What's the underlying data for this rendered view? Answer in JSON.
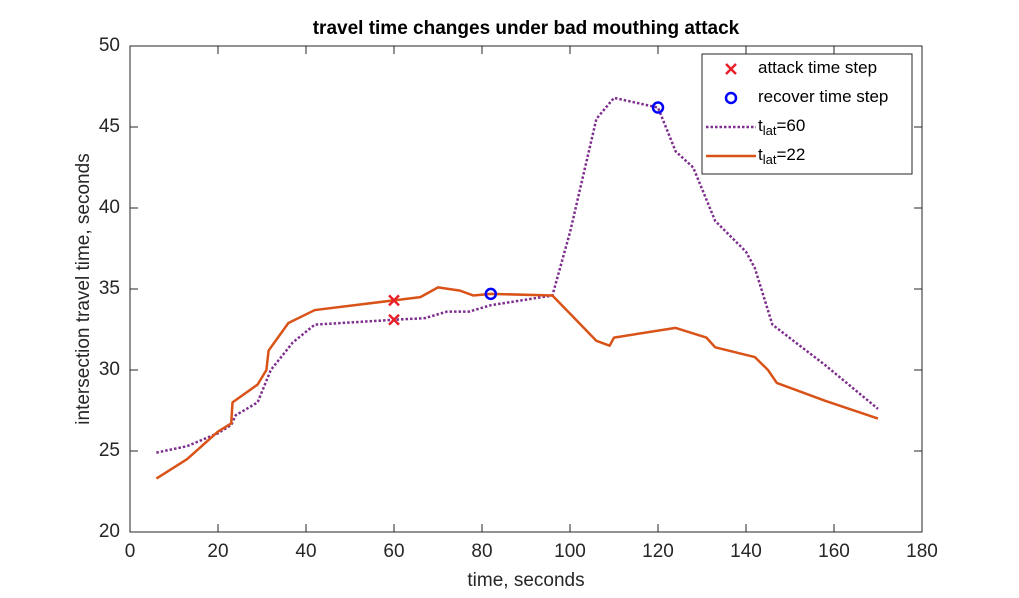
{
  "chart_data": {
    "type": "line",
    "title": "travel time changes under bad mouthing attack",
    "xlabel": "time, seconds",
    "ylabel": "intersection travel time, seconds",
    "xlim": [
      0,
      180
    ],
    "xticks": [
      0,
      20,
      40,
      60,
      80,
      100,
      120,
      140,
      160,
      180
    ],
    "ylim": [
      20,
      50
    ],
    "yticks": [
      20,
      25,
      30,
      35,
      40,
      45,
      50
    ],
    "legend": "northeast",
    "series": [
      {
        "name": "t_{lat}=60",
        "color": "#7E2F8E",
        "linestyle": "dotted",
        "x": [
          6,
          13,
          20,
          23,
          24,
          29,
          32,
          37,
          42,
          60,
          67,
          72,
          77,
          82,
          96,
          100,
          106,
          110,
          120,
          124,
          128,
          133,
          140,
          142,
          146,
          158,
          170
        ],
        "values": [
          24.9,
          25.3,
          26.1,
          26.6,
          27.2,
          28,
          30,
          31.7,
          32.8,
          33.1,
          33.2,
          33.6,
          33.6,
          34.0,
          34.6,
          38.5,
          45.5,
          46.8,
          46.2,
          43.5,
          42.5,
          39.2,
          37.3,
          36.3,
          32.8,
          30.3,
          27.6
        ]
      },
      {
        "name": "t_{lat}=22",
        "color": "#D95319",
        "linestyle": "solid",
        "x": [
          6,
          13,
          20,
          23,
          23.3,
          29,
          31,
          31.5,
          36,
          42,
          60,
          66,
          70,
          75,
          78,
          82,
          96,
          101,
          106,
          109,
          110,
          124,
          131,
          133,
          142,
          145,
          147,
          158,
          170
        ],
        "values": [
          23.3,
          24.5,
          26.2,
          26.7,
          28,
          29.1,
          30,
          31.2,
          32.9,
          33.7,
          34.3,
          34.5,
          35.1,
          34.9,
          34.6,
          34.7,
          34.6,
          33.2,
          31.8,
          31.5,
          32,
          32.6,
          32,
          31.4,
          30.8,
          30,
          29.2,
          28.1,
          27
        ]
      },
      {
        "name": "attack time step",
        "color": "#E8202A",
        "marker": "x",
        "x": [
          60,
          60
        ],
        "values": [
          34.3,
          33.1
        ]
      },
      {
        "name": "recover time step",
        "color": "#0000FF",
        "marker": "o",
        "x": [
          82,
          120
        ],
        "values": [
          34.7,
          46.2
        ]
      }
    ],
    "legend_order": [
      2,
      3,
      0,
      1
    ]
  }
}
